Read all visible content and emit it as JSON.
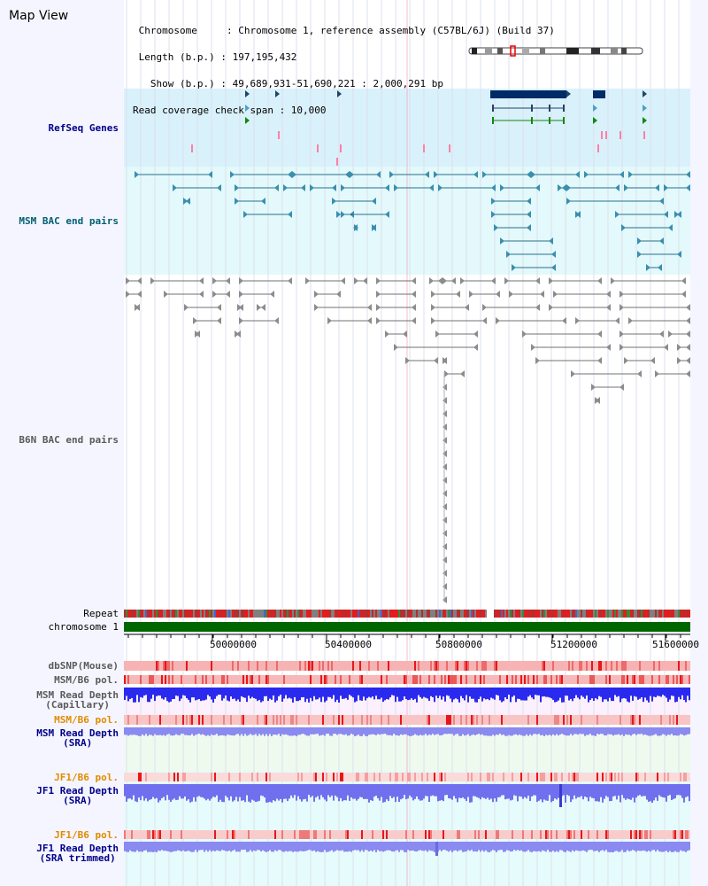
{
  "app": {
    "title": "Map View"
  },
  "info": {
    "chromosome_line": " Chromosome     : Chromosome 1, reference assembly (C57BL/6J) (Build 37)",
    "length_line": " Length (b.p.) : 197,195,432",
    "show_line": "   Show (b.p.) : 49,689,931-51,690,221 : 2,000,291 bp",
    "coverage_line": "Read coverage check span : 10,000"
  },
  "tracks": {
    "refseq": "RefSeq Genes",
    "msm_bac": "MSM BAC end pairs",
    "b6n_bac": "B6N BAC end pairs",
    "repeat": "Repeat",
    "chromosome": "chromosome 1",
    "dbsnp": "dbSNP(Mouse)",
    "msm_b6_pol_1": "MSM/B6 pol.",
    "msm_read_depth_cap": [
      "MSM Read Depth",
      "(Capillary)"
    ],
    "msm_b6_pol_2": "MSM/B6 pol.",
    "msm_read_depth_sra": [
      "MSM Read Depth",
      "(SRA)"
    ],
    "jf1_b6_pol_1": "JF1/B6 pol.",
    "jf1_read_depth_sra": [
      "JF1 Read Depth",
      "(SRA)"
    ],
    "jf1_b6_pol_2": "JF1/B6 pol.",
    "jf1_read_depth_trim": [
      "JF1 Read Depth",
      "(SRA trimmed)"
    ]
  },
  "axis": {
    "ticks": [
      "50000000",
      "50400000",
      "50800000",
      "51200000",
      "51600000"
    ]
  },
  "colors": {
    "refseq_bg": "#d9f1fb",
    "msm_bg": "#e3f9fb",
    "left_bg": "#f5f5ff",
    "chrom_green": "#006600",
    "snp_red": "#ee3333",
    "depth_blue": "#3333ee",
    "depth_light": "#8888ee"
  }
}
